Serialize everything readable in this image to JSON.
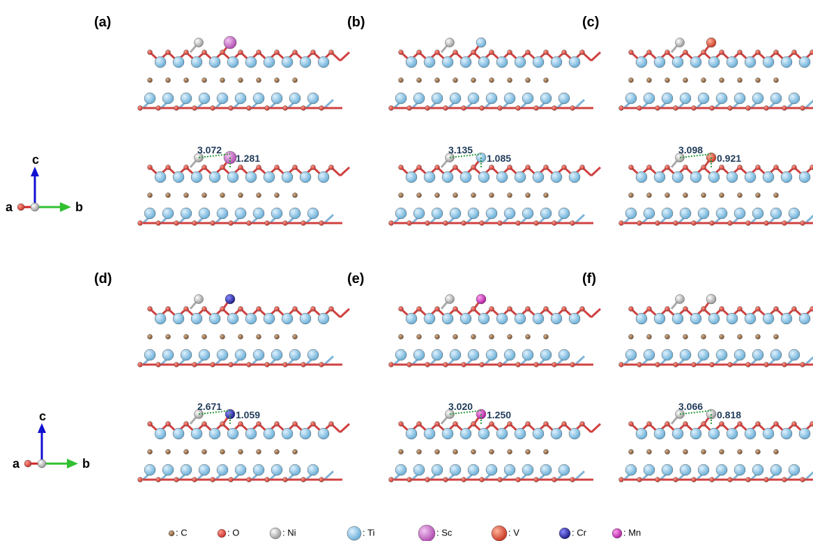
{
  "panels": [
    {
      "label": "(a)",
      "distances": [
        "3.072",
        "1.281"
      ]
    },
    {
      "label": "(b)",
      "distances": [
        "3.135",
        "1.085"
      ]
    },
    {
      "label": "(c)",
      "distances": [
        "3.098",
        "0.921"
      ]
    },
    {
      "label": "(d)",
      "distances": [
        "2.671",
        "1.059"
      ]
    },
    {
      "label": "(e)",
      "distances": [
        "3.020",
        "1.250"
      ]
    },
    {
      "label": "(f)",
      "distances": [
        "3.066",
        "0.818"
      ]
    }
  ],
  "axes": {
    "c": "c",
    "a": "a",
    "b": "b"
  },
  "legend": [
    ": C",
    ": O",
    ": Ni",
    ": Ti",
    ": Sc",
    ": V",
    ": Cr",
    ": Mn"
  ]
}
